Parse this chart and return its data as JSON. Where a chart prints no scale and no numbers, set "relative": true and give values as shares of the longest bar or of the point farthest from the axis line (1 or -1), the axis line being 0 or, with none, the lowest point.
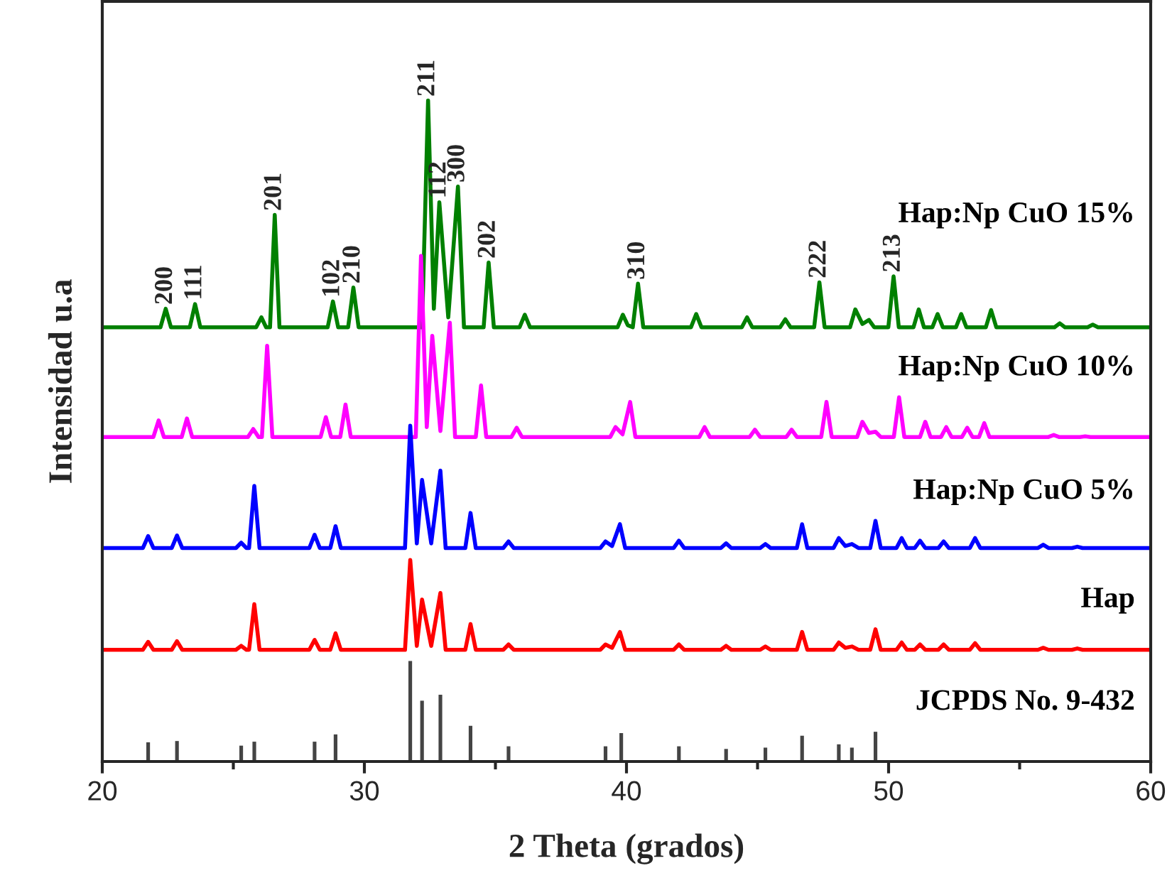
{
  "chart_data": {
    "type": "line",
    "relative": true,
    "xlabel": "2 Theta (grados)",
    "ylabel": "Intensidad u.a",
    "xlim": [
      20,
      60
    ],
    "xticks": [
      20,
      {
        "value": 25,
        "label": null
      },
      30,
      {
        "value": 35,
        "label": null
      },
      40,
      {
        "value": 45,
        "label": null
      },
      50,
      {
        "value": 55,
        "label": null
      },
      60
    ],
    "grid": false,
    "legend": false,
    "marker": "none",
    "line_style": "solid",
    "series": [
      {
        "name": "Hap:Np CuO 15%",
        "color": "#008000",
        "x": [
          20,
          22.22,
          22.42,
          22.62,
          23.34,
          23.54,
          23.74,
          25.87,
          26.07,
          26.25,
          26.4,
          26.58,
          26.76,
          28.6,
          28.8,
          29.0,
          29.38,
          29.58,
          29.78,
          32.2,
          32.43,
          32.65,
          32.86,
          33.2,
          33.57,
          33.8,
          34.55,
          34.74,
          34.94,
          35.92,
          36.12,
          36.32,
          39.66,
          39.86,
          40.05,
          40.24,
          40.44,
          40.64,
          42.46,
          42.66,
          42.86,
          44.4,
          44.6,
          44.8,
          45.86,
          46.06,
          46.26,
          47.16,
          47.36,
          47.56,
          48.53,
          48.73,
          49.0,
          49.25,
          49.45,
          49.99,
          50.19,
          50.39,
          50.95,
          51.15,
          51.35,
          51.67,
          51.87,
          52.07,
          52.57,
          52.77,
          52.97,
          53.71,
          53.91,
          54.11,
          56.33,
          56.53,
          56.73,
          57.59,
          57.79,
          57.99,
          60
        ],
        "values": [
          0.657,
          0.657,
          0.685,
          0.657,
          0.657,
          0.692,
          0.657,
          0.657,
          0.672,
          0.657,
          0.657,
          0.827,
          0.657,
          0.657,
          0.696,
          0.657,
          0.657,
          0.717,
          0.657,
          0.657,
          1.0,
          0.685,
          0.846,
          0.672,
          0.87,
          0.657,
          0.657,
          0.755,
          0.657,
          0.657,
          0.676,
          0.657,
          0.657,
          0.676,
          0.66,
          0.657,
          0.723,
          0.657,
          0.657,
          0.677,
          0.657,
          0.657,
          0.672,
          0.657,
          0.657,
          0.669,
          0.657,
          0.657,
          0.725,
          0.657,
          0.657,
          0.684,
          0.662,
          0.668,
          0.657,
          0.657,
          0.734,
          0.657,
          0.657,
          0.684,
          0.657,
          0.657,
          0.677,
          0.657,
          0.657,
          0.677,
          0.657,
          0.657,
          0.683,
          0.657,
          0.657,
          0.663,
          0.657,
          0.657,
          0.661,
          0.657,
          0.657
        ]
      },
      {
        "name": "Hap:Np CuO 10%",
        "color": "#ff00ff",
        "x": [
          20,
          21.95,
          22.15,
          22.35,
          23.03,
          23.23,
          23.43,
          25.56,
          25.76,
          25.96,
          26.09,
          26.29,
          26.49,
          28.33,
          28.53,
          28.73,
          29.08,
          29.28,
          29.48,
          31.96,
          32.16,
          32.38,
          32.59,
          32.9,
          33.26,
          33.46,
          34.25,
          34.45,
          34.65,
          35.61,
          35.81,
          36.01,
          39.38,
          39.58,
          39.85,
          40.14,
          40.34,
          42.78,
          42.98,
          43.18,
          44.7,
          44.9,
          45.1,
          46.1,
          46.3,
          46.5,
          47.43,
          47.63,
          47.83,
          48.8,
          49.0,
          49.25,
          49.5,
          49.7,
          50.2,
          50.4,
          50.6,
          51.2,
          51.4,
          51.6,
          52.0,
          52.2,
          52.4,
          52.8,
          53.0,
          53.2,
          53.45,
          53.65,
          53.85,
          56.1,
          56.3,
          56.5,
          57.3,
          57.5,
          57.7,
          60
        ],
        "values": [
          0.491,
          0.491,
          0.516,
          0.491,
          0.491,
          0.519,
          0.491,
          0.491,
          0.503,
          0.491,
          0.491,
          0.629,
          0.491,
          0.491,
          0.521,
          0.491,
          0.491,
          0.54,
          0.491,
          0.491,
          0.765,
          0.506,
          0.644,
          0.5,
          0.664,
          0.491,
          0.491,
          0.569,
          0.491,
          0.491,
          0.505,
          0.491,
          0.491,
          0.506,
          0.495,
          0.544,
          0.491,
          0.491,
          0.506,
          0.491,
          0.491,
          0.502,
          0.491,
          0.491,
          0.502,
          0.491,
          0.491,
          0.544,
          0.491,
          0.491,
          0.514,
          0.497,
          0.499,
          0.491,
          0.491,
          0.551,
          0.491,
          0.491,
          0.514,
          0.491,
          0.491,
          0.506,
          0.491,
          0.491,
          0.505,
          0.491,
          0.491,
          0.512,
          0.491,
          0.491,
          0.494,
          0.491,
          0.491,
          0.492,
          0.491,
          0.491
        ]
      },
      {
        "name": "Hap:Np CuO 5%",
        "color": "#0000ff",
        "x": [
          20,
          21.55,
          21.75,
          21.95,
          22.65,
          22.85,
          23.05,
          25.1,
          25.3,
          25.5,
          25.6,
          25.8,
          26.0,
          27.9,
          28.1,
          28.3,
          28.7,
          28.9,
          29.1,
          31.55,
          31.75,
          32.0,
          32.2,
          32.55,
          32.9,
          33.1,
          33.85,
          34.05,
          34.25,
          35.3,
          35.5,
          35.7,
          39.0,
          39.2,
          39.45,
          39.75,
          39.95,
          41.8,
          42.0,
          42.2,
          43.6,
          43.8,
          44.0,
          45.1,
          45.3,
          45.5,
          46.5,
          46.7,
          46.9,
          47.9,
          48.1,
          48.35,
          48.6,
          48.85,
          49.3,
          49.5,
          49.7,
          50.3,
          50.5,
          50.7,
          51.0,
          51.2,
          51.4,
          51.9,
          52.1,
          52.3,
          53.1,
          53.3,
          53.5,
          55.7,
          55.9,
          56.1,
          57.0,
          57.2,
          57.4,
          60
        ],
        "values": [
          0.323,
          0.323,
          0.341,
          0.323,
          0.323,
          0.342,
          0.323,
          0.323,
          0.331,
          0.323,
          0.323,
          0.417,
          0.323,
          0.323,
          0.343,
          0.323,
          0.323,
          0.356,
          0.323,
          0.323,
          0.508,
          0.33,
          0.426,
          0.33,
          0.44,
          0.323,
          0.323,
          0.376,
          0.323,
          0.323,
          0.333,
          0.323,
          0.323,
          0.333,
          0.326,
          0.359,
          0.323,
          0.323,
          0.334,
          0.323,
          0.323,
          0.33,
          0.323,
          0.323,
          0.329,
          0.323,
          0.323,
          0.359,
          0.323,
          0.323,
          0.338,
          0.326,
          0.329,
          0.323,
          0.323,
          0.364,
          0.323,
          0.323,
          0.338,
          0.323,
          0.323,
          0.334,
          0.323,
          0.323,
          0.333,
          0.323,
          0.323,
          0.338,
          0.323,
          0.323,
          0.328,
          0.323,
          0.323,
          0.325,
          0.323,
          0.323
        ]
      },
      {
        "name": "Hap",
        "color": "#ff0000",
        "x": [
          20,
          21.55,
          21.75,
          21.95,
          22.65,
          22.85,
          23.05,
          25.1,
          25.3,
          25.5,
          25.6,
          25.8,
          26.0,
          27.9,
          28.1,
          28.3,
          28.7,
          28.9,
          29.1,
          31.55,
          31.75,
          32.0,
          32.2,
          32.55,
          32.9,
          33.1,
          33.85,
          34.05,
          34.25,
          35.3,
          35.5,
          35.7,
          39.0,
          39.2,
          39.45,
          39.75,
          39.95,
          41.8,
          42.0,
          42.2,
          43.6,
          43.8,
          44.0,
          45.1,
          45.3,
          45.5,
          46.5,
          46.7,
          46.9,
          47.9,
          48.1,
          48.35,
          48.6,
          48.85,
          49.3,
          49.5,
          49.7,
          50.3,
          50.5,
          50.7,
          51.0,
          51.2,
          51.4,
          51.9,
          52.1,
          52.3,
          53.1,
          53.3,
          53.5,
          55.7,
          55.9,
          56.1,
          57.0,
          57.2,
          57.4,
          60
        ],
        "values": [
          0.169,
          0.169,
          0.181,
          0.169,
          0.169,
          0.182,
          0.169,
          0.169,
          0.175,
          0.169,
          0.169,
          0.238,
          0.169,
          0.169,
          0.184,
          0.169,
          0.169,
          0.194,
          0.169,
          0.169,
          0.305,
          0.175,
          0.245,
          0.175,
          0.255,
          0.169,
          0.169,
          0.208,
          0.169,
          0.169,
          0.177,
          0.169,
          0.169,
          0.177,
          0.172,
          0.196,
          0.169,
          0.169,
          0.177,
          0.169,
          0.169,
          0.175,
          0.169,
          0.169,
          0.174,
          0.169,
          0.169,
          0.196,
          0.169,
          0.169,
          0.18,
          0.172,
          0.174,
          0.169,
          0.169,
          0.2,
          0.169,
          0.169,
          0.18,
          0.169,
          0.169,
          0.177,
          0.169,
          0.169,
          0.177,
          0.169,
          0.169,
          0.179,
          0.169,
          0.169,
          0.172,
          0.169,
          0.169,
          0.171,
          0.169,
          0.169
        ]
      },
      {
        "name": "JCPDS No. 9-432",
        "type": "bar",
        "color": "#444444",
        "x": [
          21.75,
          22.85,
          25.3,
          25.8,
          28.1,
          28.9,
          31.75,
          32.2,
          32.9,
          34.05,
          35.5,
          39.2,
          39.8,
          42.0,
          43.8,
          45.3,
          46.7,
          48.1,
          48.6,
          49.5
        ],
        "values": [
          0.029,
          0.031,
          0.024,
          0.03,
          0.03,
          0.041,
          0.152,
          0.092,
          0.101,
          0.054,
          0.023,
          0.023,
          0.043,
          0.023,
          0.019,
          0.021,
          0.039,
          0.026,
          0.021,
          0.045
        ]
      }
    ],
    "annotations": [
      {
        "text": "200",
        "x": 22.42,
        "y": 0.685
      },
      {
        "text": "111",
        "x": 23.54,
        "y": 0.692
      },
      {
        "text": "201",
        "x": 26.58,
        "y": 0.827
      },
      {
        "text": "102",
        "x": 28.8,
        "y": 0.696
      },
      {
        "text": "210",
        "x": 29.58,
        "y": 0.717
      },
      {
        "text": "211",
        "x": 32.43,
        "y": 1.0
      },
      {
        "text": "112",
        "x": 32.86,
        "y": 0.846
      },
      {
        "text": "300",
        "x": 33.57,
        "y": 0.87
      },
      {
        "text": "202",
        "x": 34.74,
        "y": 0.755
      },
      {
        "text": "310",
        "x": 40.44,
        "y": 0.723
      },
      {
        "text": "222",
        "x": 47.36,
        "y": 0.725
      },
      {
        "text": "213",
        "x": 50.19,
        "y": 0.734
      }
    ]
  }
}
